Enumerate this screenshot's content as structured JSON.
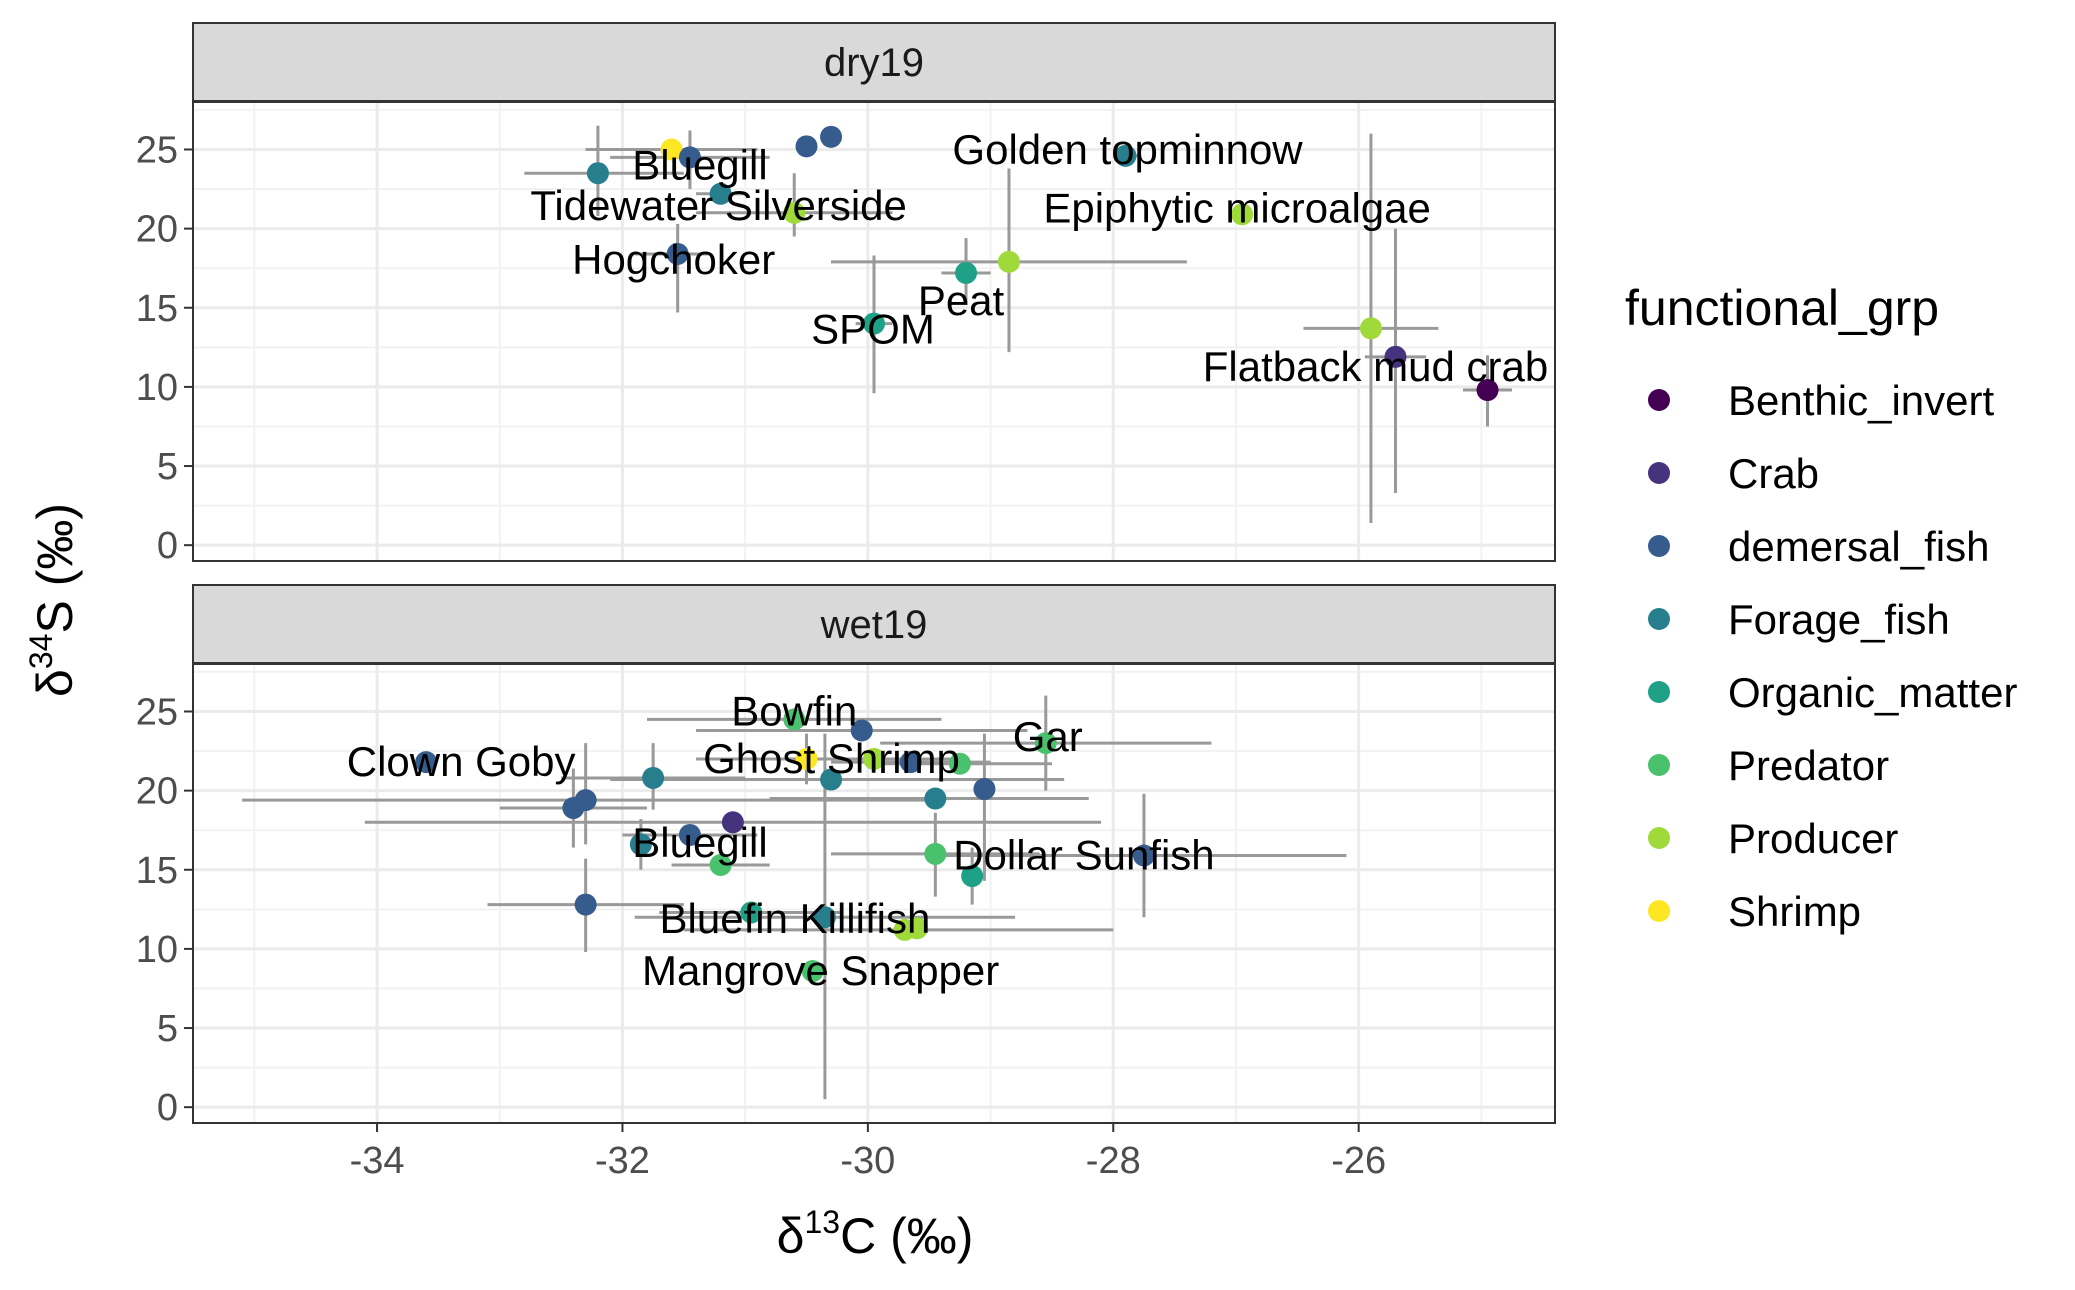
{
  "chart_data": {
    "type": "scatter",
    "x_title": {
      "pre": "δ",
      "sup": "13",
      "post": "C (‰)"
    },
    "y_title": {
      "pre": "δ",
      "sup": "34",
      "post": "S (‰)"
    },
    "xlim": [
      -35.5,
      -24.4
    ],
    "ylim": [
      -1,
      28
    ],
    "x_ticks": [
      -34,
      -32,
      -30,
      -28,
      -26
    ],
    "x_tick_labels": [
      "-34",
      "-32",
      "-30",
      "-28",
      "-26"
    ],
    "y_ticks": [
      0,
      5,
      10,
      15,
      20,
      25
    ],
    "y_tick_labels": [
      "0",
      "5",
      "10",
      "15",
      "20",
      "25"
    ],
    "grid": true,
    "legend_position": "right",
    "legend": {
      "title": "functional_grp",
      "entries": [
        {
          "name": "Benthic_invert",
          "color": "#440154"
        },
        {
          "name": "Crab",
          "color": "#46337E"
        },
        {
          "name": "demersal_fish",
          "color": "#365C8D"
        },
        {
          "name": "Forage_fish",
          "color": "#277F8E"
        },
        {
          "name": "Organic_matter",
          "color": "#1FA187"
        },
        {
          "name": "Predator",
          "color": "#4AC16D"
        },
        {
          "name": "Producer",
          "color": "#9FDA3A"
        },
        {
          "name": "Shrimp",
          "color": "#FDE725"
        }
      ]
    },
    "panels": [
      {
        "name": "dry19",
        "points": [
          {
            "x": -31.6,
            "y": 25.0,
            "grp": "Shrimp",
            "xmin": -32.3,
            "xmax": -30.9
          },
          {
            "x": -31.45,
            "y": 24.5,
            "grp": "demersal_fish",
            "xmin": -32.1,
            "xmax": -30.8,
            "ymin": 22.5,
            "ymax": 26.2,
            "label": "Bluegill"
          },
          {
            "x": -30.5,
            "y": 25.2,
            "grp": "demersal_fish"
          },
          {
            "x": -30.3,
            "y": 25.8,
            "grp": "demersal_fish"
          },
          {
            "x": -32.2,
            "y": 23.5,
            "grp": "Forage_fish",
            "xmin": -32.8,
            "xmax": -31.5,
            "ymin": 20.8,
            "ymax": 26.5
          },
          {
            "x": -31.2,
            "y": 22.2,
            "grp": "Forage_fish",
            "xmin": -31.4,
            "xmax": -31.0,
            "label": "Tidewater Silverside"
          },
          {
            "x": -30.6,
            "y": 21.0,
            "grp": "Producer",
            "xmin": -31.4,
            "xmax": -29.8,
            "ymin": 19.5,
            "ymax": 23.5
          },
          {
            "x": -31.55,
            "y": 18.4,
            "grp": "demersal_fish",
            "xmin": -31.9,
            "xmax": -31.3,
            "ymin": 14.7,
            "ymax": 20.3,
            "label": "Hogchoker"
          },
          {
            "x": -27.9,
            "y": 24.6,
            "grp": "Forage_fish",
            "xmin": -28.0,
            "xmax": -27.8,
            "label": "Golden topminnow"
          },
          {
            "x": -26.95,
            "y": 20.9,
            "grp": "Producer",
            "label": "Epiphytic microalgae"
          },
          {
            "x": -29.2,
            "y": 17.2,
            "grp": "Organic_matter",
            "xmin": -29.4,
            "xmax": -29.0,
            "ymin": 15.2,
            "ymax": 19.4,
            "label": "Peat"
          },
          {
            "x": -28.85,
            "y": 17.9,
            "grp": "Producer",
            "xmin": -30.3,
            "xmax": -27.4,
            "ymin": 12.2,
            "ymax": 23.8
          },
          {
            "x": -29.95,
            "y": 14.0,
            "grp": "Organic_matter",
            "xmin": -30.1,
            "xmax": -29.8,
            "ymin": 9.6,
            "ymax": 18.3,
            "label": "SPOM"
          },
          {
            "x": -25.9,
            "y": 13.7,
            "grp": "Producer",
            "xmin": -26.45,
            "xmax": -25.35,
            "ymin": 1.4,
            "ymax": 26.0
          },
          {
            "x": -25.7,
            "y": 11.9,
            "grp": "Crab",
            "xmin": -25.95,
            "xmax": -25.45,
            "ymin": 3.3,
            "ymax": 20.0,
            "label": "Flatback mud crab"
          },
          {
            "x": -24.95,
            "y": 9.8,
            "grp": "Benthic_invert",
            "xmin": -25.15,
            "xmax": -24.75,
            "ymin": 7.5,
            "ymax": 12.0
          }
        ]
      },
      {
        "name": "wet19",
        "points": [
          {
            "x": -30.6,
            "y": 24.5,
            "grp": "Predator",
            "xmin": -31.8,
            "xmax": -29.4,
            "label": "Bowfin"
          },
          {
            "x": -30.05,
            "y": 23.8,
            "grp": "demersal_fish",
            "xmin": -31.4,
            "xmax": -28.7
          },
          {
            "x": -28.55,
            "y": 23.0,
            "grp": "Predator",
            "xmin": -29.9,
            "xmax": -27.2,
            "ymin": 20.0,
            "ymax": 26.0,
            "label": "Gar"
          },
          {
            "x": -33.6,
            "y": 21.8,
            "grp": "demersal_fish",
            "label": "Clown Goby"
          },
          {
            "x": -30.5,
            "y": 22.0,
            "grp": "Shrimp",
            "xmin": -31.4,
            "xmax": -29.7,
            "ymin": 20.4,
            "ymax": 23.6,
            "label": "Ghost Shrimp"
          },
          {
            "x": -29.95,
            "y": 22.0,
            "grp": "Producer",
            "xmin": -30.6,
            "xmax": -29.3
          },
          {
            "x": -29.65,
            "y": 21.8,
            "grp": "demersal_fish",
            "xmin": -30.3,
            "xmax": -29.0
          },
          {
            "x": -29.25,
            "y": 21.7,
            "grp": "Predator",
            "xmin": -30.0,
            "xmax": -28.5
          },
          {
            "x": -31.75,
            "y": 20.8,
            "grp": "Forage_fish",
            "xmin": -32.5,
            "xmax": -31.0,
            "ymin": 18.8,
            "ymax": 23.0
          },
          {
            "x": -30.3,
            "y": 20.7,
            "grp": "Forage_fish",
            "xmin": -32.1,
            "xmax": -28.4
          },
          {
            "x": -29.05,
            "y": 20.1,
            "grp": "demersal_fish",
            "ymin": 14.3,
            "ymax": 23.6
          },
          {
            "x": -29.45,
            "y": 19.5,
            "grp": "Forage_fish",
            "xmin": -30.8,
            "xmax": -28.2
          },
          {
            "x": -32.3,
            "y": 19.4,
            "grp": "demersal_fish",
            "xmin": -35.1,
            "xmax": -29.5,
            "ymin": 16.6,
            "ymax": 23.0
          },
          {
            "x": -32.4,
            "y": 18.9,
            "grp": "demersal_fish",
            "xmin": -33.0,
            "xmax": -31.8,
            "ymin": 16.4,
            "ymax": 21.4
          },
          {
            "x": -31.1,
            "y": 18.0,
            "grp": "Crab",
            "xmin": -34.1,
            "xmax": -28.1
          },
          {
            "x": -31.45,
            "y": 17.2,
            "grp": "demersal_fish",
            "xmin": -32.0,
            "xmax": -30.9,
            "label": "Bluegill"
          },
          {
            "x": -31.85,
            "y": 16.6,
            "grp": "Forage_fish",
            "ymin": 15.0,
            "ymax": 18.2
          },
          {
            "x": -27.75,
            "y": 15.9,
            "grp": "demersal_fish",
            "xmin": -29.4,
            "xmax": -26.1,
            "ymin": 12.0,
            "ymax": 19.8,
            "label": "Dollar Sunfish"
          },
          {
            "x": -29.45,
            "y": 16.0,
            "grp": "Predator",
            "xmin": -30.3,
            "xmax": -28.6,
            "ymin": 13.3,
            "ymax": 18.6
          },
          {
            "x": -31.2,
            "y": 15.3,
            "grp": "Predator",
            "xmin": -31.6,
            "xmax": -30.8
          },
          {
            "x": -29.15,
            "y": 14.6,
            "grp": "Organic_matter",
            "ymin": 12.8,
            "ymax": 16.4
          },
          {
            "x": -32.3,
            "y": 12.8,
            "grp": "demersal_fish",
            "xmin": -33.1,
            "xmax": -31.5,
            "ymin": 9.8,
            "ymax": 15.7
          },
          {
            "x": -30.95,
            "y": 12.3,
            "grp": "Organic_matter",
            "xmin": -31.7,
            "xmax": -30.2
          },
          {
            "x": -30.35,
            "y": 12.0,
            "grp": "Forage_fish",
            "xmin": -31.9,
            "xmax": -28.8,
            "ymin": 0.5,
            "ymax": 23.6,
            "label": "Bluefin Killifish"
          },
          {
            "x": -29.7,
            "y": 11.2,
            "grp": "Producer",
            "xmin": -31.5,
            "xmax": -28.0
          },
          {
            "x": -29.6,
            "y": 11.3,
            "grp": "Producer"
          },
          {
            "x": -30.45,
            "y": 8.6,
            "grp": "Predator",
            "label": "Mangrove Snapper"
          }
        ]
      }
    ]
  }
}
